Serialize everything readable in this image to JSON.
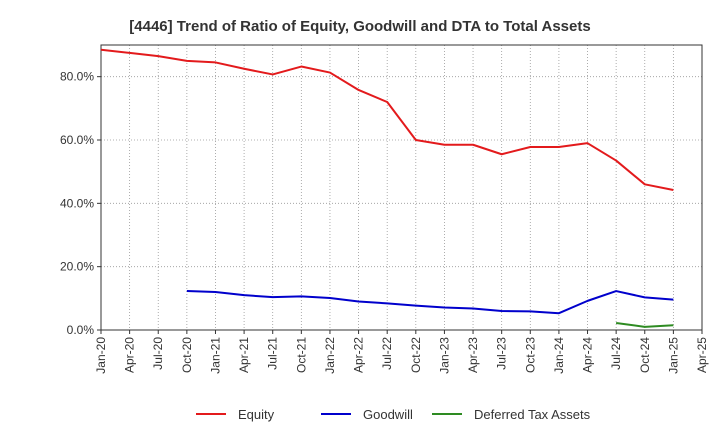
{
  "chart_data": {
    "type": "line",
    "title": "[4446]  Trend of Ratio of Equity, Goodwill and DTA to Total Assets",
    "xlabel": "",
    "ylabel": "",
    "ylim": [
      0,
      90
    ],
    "y_ticks": [
      0,
      20,
      40,
      60,
      80
    ],
    "y_tick_labels": [
      "0.0%",
      "20.0%",
      "40.0%",
      "60.0%",
      "80.0%"
    ],
    "x_tick_labels": [
      "Jan-20",
      "Apr-20",
      "Jul-20",
      "Oct-20",
      "Jan-21",
      "Apr-21",
      "Jul-21",
      "Oct-21",
      "Jan-22",
      "Apr-22",
      "Jul-22",
      "Oct-22",
      "Jan-23",
      "Apr-23",
      "Jul-23",
      "Oct-23",
      "Jan-24",
      "Apr-24",
      "Jul-24",
      "Oct-24",
      "Jan-25",
      "Apr-25"
    ],
    "grid": true,
    "legend_position": "bottom",
    "series": [
      {
        "name": "Equity",
        "color": "#e31a1c",
        "start_index": 0,
        "values": [
          88.5,
          87.5,
          86.5,
          85.0,
          84.5,
          82.5,
          80.7,
          83.2,
          81.3,
          75.8,
          72.0,
          60.0,
          58.5,
          58.5,
          55.5,
          57.8,
          57.8,
          59.0,
          53.5,
          46.0,
          44.2
        ]
      },
      {
        "name": "Goodwill",
        "color": "#0000cc",
        "start_index": 3,
        "values": [
          12.3,
          12.0,
          11.0,
          10.4,
          10.6,
          10.1,
          9.0,
          8.4,
          7.7,
          7.1,
          6.8,
          6.0,
          5.9,
          5.3,
          9.2,
          12.3,
          10.3,
          9.6
        ]
      },
      {
        "name": "Deferred Tax Assets",
        "color": "#2e8b22",
        "start_index": 18,
        "values": [
          2.2,
          1.0,
          1.5
        ]
      }
    ]
  }
}
